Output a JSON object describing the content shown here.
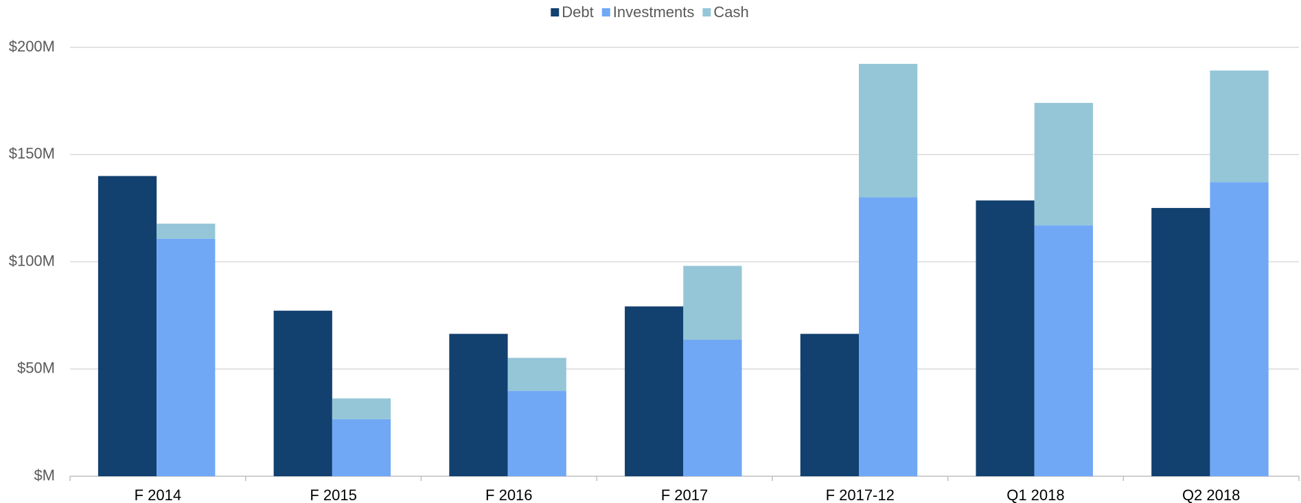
{
  "chart_data": {
    "type": "bar",
    "categories": [
      "F 2014",
      "F 2015",
      "F 2016",
      "F 2017",
      "F 2017-12",
      "Q1 2018",
      "Q2 2018"
    ],
    "series": [
      {
        "name": "Debt",
        "color": "#12406f",
        "stack": "debt",
        "values": [
          140,
          77.2,
          66.4,
          79.2,
          66.4,
          128.6,
          125.1
        ]
      },
      {
        "name": "Investments",
        "color": "#71a8f5",
        "stack": "assets",
        "values": [
          110.8,
          26.6,
          39.8,
          63.7,
          130.1,
          117,
          137.1
        ]
      },
      {
        "name": "Cash",
        "color": "#95c6d8",
        "stack": "assets",
        "values": [
          7,
          9.7,
          15.4,
          34.4,
          62.2,
          57.1,
          52.1
        ]
      }
    ],
    "ylim": [
      0,
      200
    ],
    "yticks": [
      {
        "value": 0,
        "label": "$M"
      },
      {
        "value": 50,
        "label": "$50M"
      },
      {
        "value": 100,
        "label": "$100M"
      },
      {
        "value": 150,
        "label": "$150M"
      },
      {
        "value": 200,
        "label": "$200M"
      }
    ],
    "grid": true,
    "legend": "top"
  }
}
